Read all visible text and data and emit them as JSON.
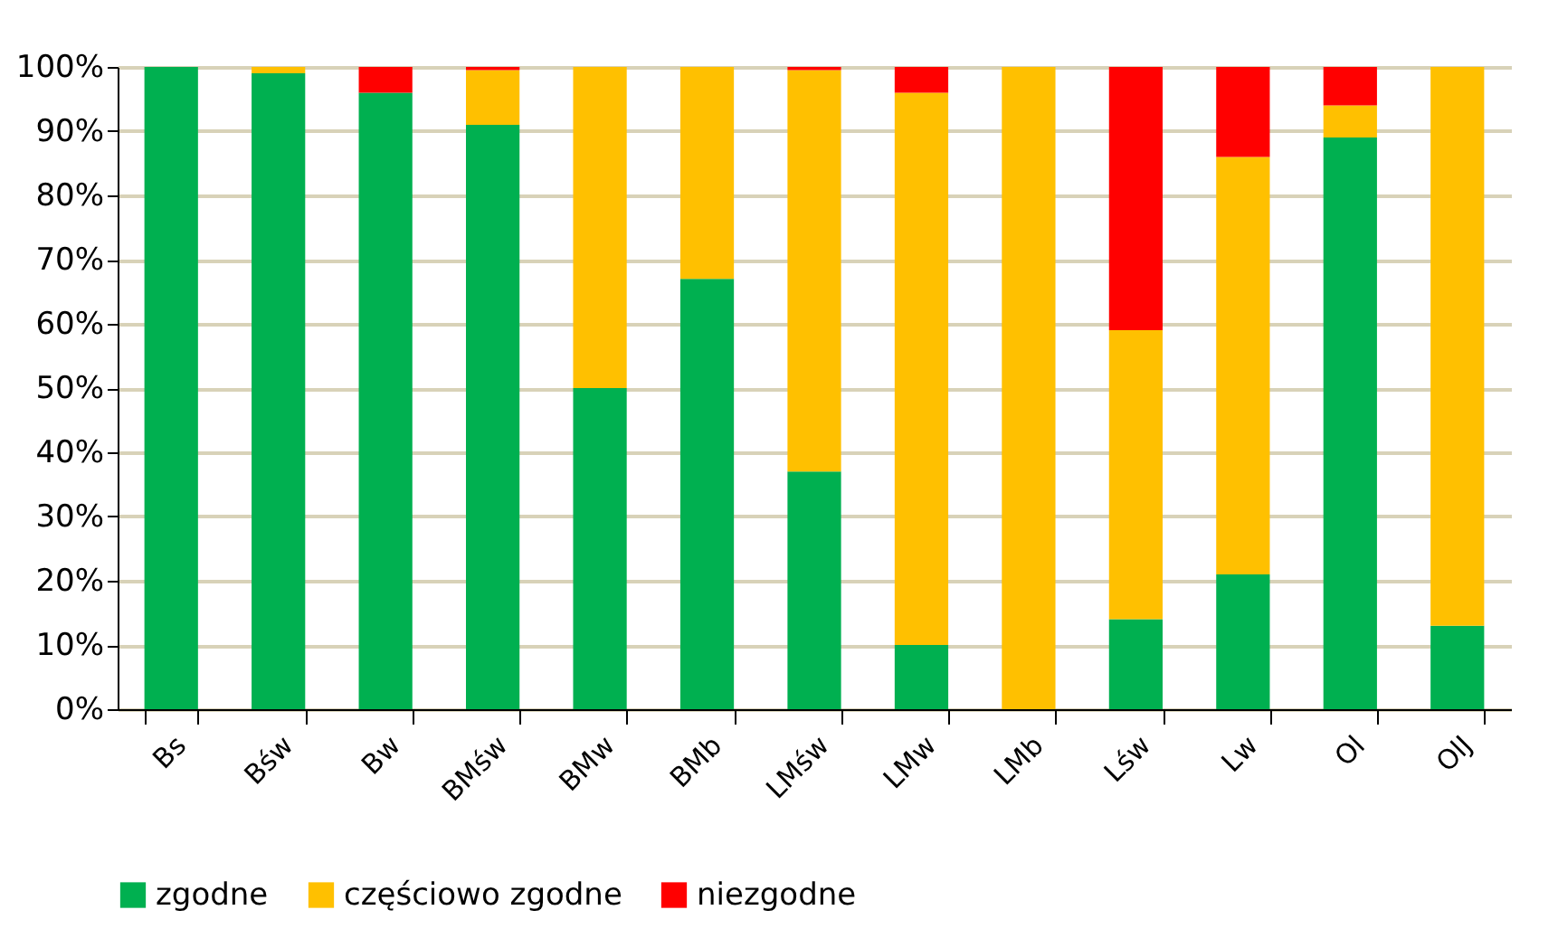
{
  "chart_data": {
    "type": "bar",
    "stacked": true,
    "categories": [
      "Bs",
      "Bśw",
      "Bw",
      "BMśw",
      "BMw",
      "BMb",
      "LMśw",
      "LMw",
      "LMb",
      "Lśw",
      "Lw",
      "Ol",
      "OlJ"
    ],
    "series": [
      {
        "name": "zgodne",
        "color": "#00b050",
        "values": [
          100,
          99,
          96,
          91,
          50,
          67,
          37,
          10,
          0,
          14,
          21,
          89,
          13
        ]
      },
      {
        "name": "częściowo zgodne",
        "color": "#ffc000",
        "values": [
          0,
          1,
          0,
          8.5,
          50,
          33,
          62.5,
          86,
          100,
          45,
          65,
          5,
          87
        ]
      },
      {
        "name": "niezgodne",
        "color": "#ff0000",
        "values": [
          0,
          0,
          4,
          0.5,
          0,
          0,
          0.5,
          4,
          0,
          41,
          14,
          6,
          0
        ]
      }
    ],
    "ylim": [
      0,
      100
    ],
    "yticks": [
      {
        "value": 0,
        "label": "0%"
      },
      {
        "value": 10,
        "label": "10%"
      },
      {
        "value": 20,
        "label": "20%"
      },
      {
        "value": 30,
        "label": "30%"
      },
      {
        "value": 40,
        "label": "40%"
      },
      {
        "value": 50,
        "label": "50%"
      },
      {
        "value": 60,
        "label": "60%"
      },
      {
        "value": 70,
        "label": "70%"
      },
      {
        "value": 80,
        "label": "80%"
      },
      {
        "value": 90,
        "label": "90%"
      },
      {
        "value": 100,
        "label": "100%"
      }
    ],
    "grid": "y",
    "legend": "bottom"
  }
}
